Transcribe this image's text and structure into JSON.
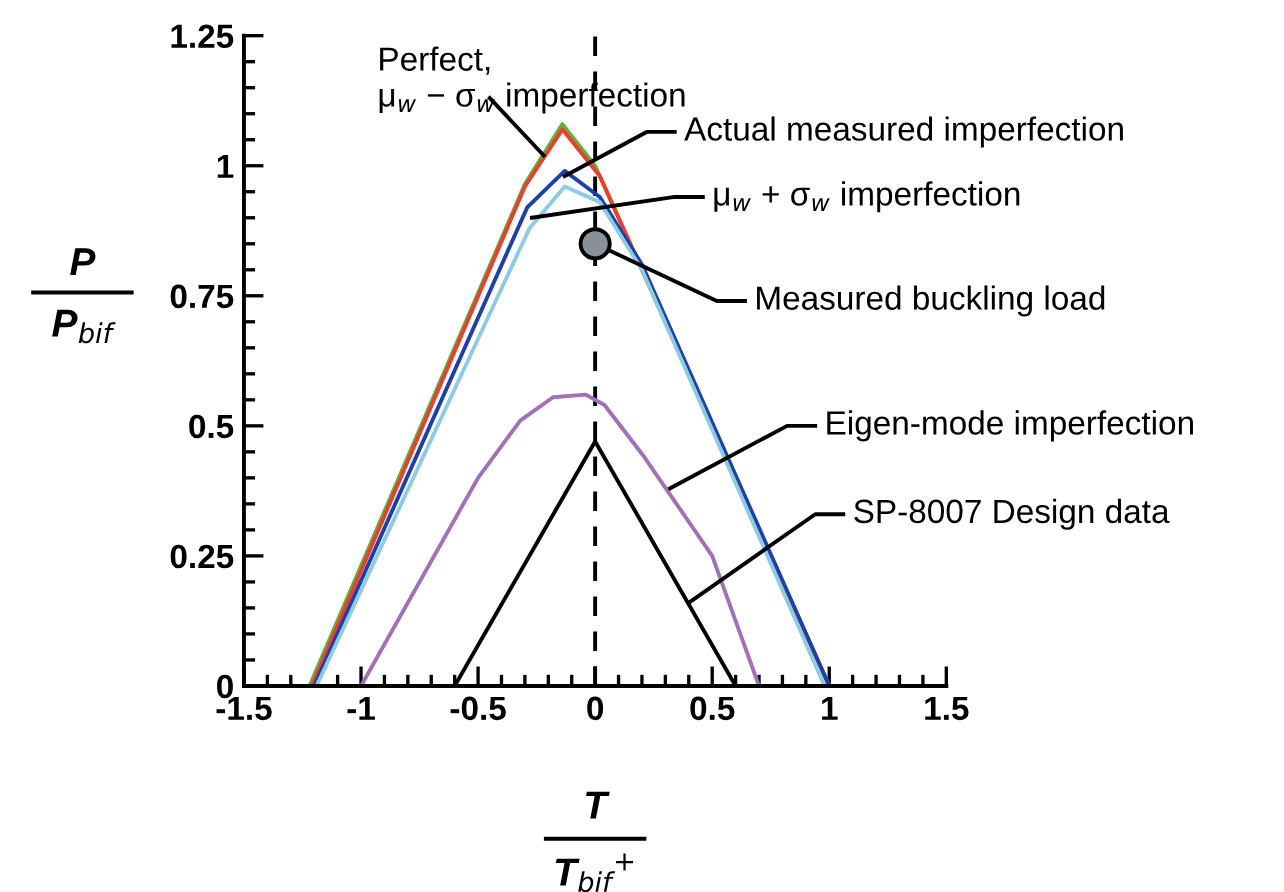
{
  "chart_data": {
    "type": "line",
    "xlabel": "T\nT$_{bif}$$^{+}$",
    "ylabel": "P\nP$_{bif}$",
    "xlim": [
      -1.5,
      1.5
    ],
    "ylim": [
      0,
      1.25
    ],
    "xticks": [
      {
        "value": -1.5,
        "label": "-1.5"
      },
      {
        "value": -1,
        "label": "-1"
      },
      {
        "value": -0.5,
        "label": "-0.5"
      },
      0,
      0.5,
      1,
      1.5
    ],
    "yticks": [
      0,
      0.25,
      0.5,
      0.75,
      1,
      1.25
    ],
    "grid": false,
    "legend": false,
    "marker": "none",
    "line_style": "solid",
    "ref_lines": [
      {
        "axis": "x",
        "value": 0,
        "color": "#000000",
        "line_style": "dashed"
      }
    ],
    "series": [
      {
        "color": "#62b044",
        "x": [
          -1.22,
          -0.3,
          -0.14,
          0.0,
          1.0
        ],
        "values": [
          0,
          0.965,
          1.08,
          1.0,
          0
        ]
      },
      {
        "color": "#e8402a",
        "x": [
          -1.21,
          -0.3,
          -0.14,
          0.02,
          0.1,
          1.0
        ],
        "values": [
          0,
          0.96,
          1.07,
          0.98,
          0.9,
          0
        ]
      },
      {
        "color": "#1f3fa8",
        "x": [
          -1.2,
          -0.29,
          -0.13,
          0.02,
          0.2,
          1.0
        ],
        "values": [
          0,
          0.92,
          0.99,
          0.94,
          0.81,
          0
        ]
      },
      {
        "color": "#8ccbe0",
        "x": [
          -1.19,
          -0.28,
          -0.13,
          0.02,
          0.2,
          0.98
        ],
        "values": [
          0,
          0.88,
          0.96,
          0.93,
          0.8,
          0
        ]
      },
      {
        "color": "#a070b8",
        "x": [
          -1.0,
          -0.5,
          -0.32,
          -0.18,
          -0.04,
          0.04,
          0.21,
          0.5,
          0.7
        ],
        "values": [
          0,
          0.4,
          0.51,
          0.555,
          0.56,
          0.54,
          0.44,
          0.25,
          0
        ]
      },
      {
        "color": "#000000",
        "x": [
          -0.6,
          0,
          0.6
        ],
        "values": [
          0,
          0.47,
          0
        ]
      },
      {
        "type": "scatter",
        "marker": "circle",
        "color": "#8a9099",
        "x": [
          0
        ],
        "values": [
          0.85
        ]
      }
    ],
    "annotations": [
      {
        "text": "Perfect,\nμ$_{w}$ − σ$_{w}$ imperfection",
        "x": -0.22,
        "y": 1.02
      },
      {
        "text": "Actual measured imperfection",
        "x": -0.13,
        "y": 0.98
      },
      {
        "text": "μ$_{w}$ + σ$_{w}$ imperfection",
        "x": -0.27,
        "y": 0.9
      },
      {
        "text": "Measured buckling load",
        "x": 0,
        "y": 0.85
      },
      {
        "text": "Eigen-mode imperfection",
        "x": 0.32,
        "y": 0.38
      },
      {
        "text": "SP-8007 Design data",
        "x": 0.4,
        "y": 0.16
      }
    ]
  }
}
